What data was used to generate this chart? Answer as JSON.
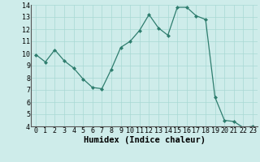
{
  "x": [
    0,
    1,
    2,
    3,
    4,
    5,
    6,
    7,
    8,
    9,
    10,
    11,
    12,
    13,
    14,
    15,
    16,
    17,
    18,
    19,
    20,
    21,
    22,
    23
  ],
  "y": [
    9.9,
    9.3,
    10.3,
    9.4,
    8.8,
    7.9,
    7.2,
    7.1,
    8.7,
    10.5,
    11.0,
    11.9,
    13.2,
    12.1,
    11.5,
    13.8,
    13.8,
    13.1,
    12.8,
    6.4,
    4.5,
    4.4,
    3.9,
    4.0
  ],
  "xlabel": "Humidex (Indice chaleur)",
  "ylim": [
    4,
    14
  ],
  "yticks": [
    4,
    5,
    6,
    7,
    8,
    9,
    10,
    11,
    12,
    13,
    14
  ],
  "xticks": [
    0,
    1,
    2,
    3,
    4,
    5,
    6,
    7,
    8,
    9,
    10,
    11,
    12,
    13,
    14,
    15,
    16,
    17,
    18,
    19,
    20,
    21,
    22,
    23
  ],
  "line_color": "#2e7d6e",
  "marker_color": "#2e7d6e",
  "bg_color": "#ceecea",
  "grid_color": "#a8d8d4",
  "tick_label_fontsize": 6.0,
  "xlabel_fontsize": 7.5
}
